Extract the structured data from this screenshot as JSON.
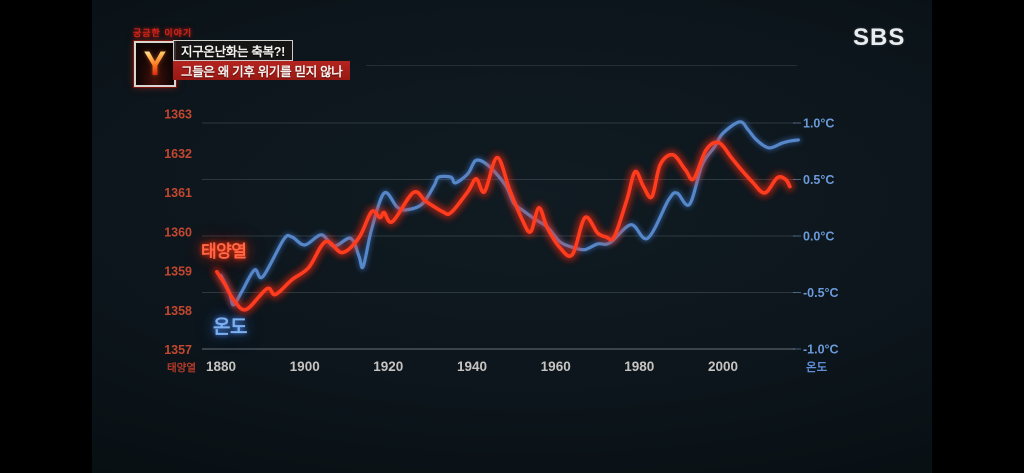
{
  "broadcast": {
    "program_tag": "궁금한 이야기",
    "logo_letter": "Y",
    "headline_primary": "지구온난화는 축복?!",
    "headline_secondary": "그들은 왜 기후 위기를 믿지 않나",
    "channel_logo": "SBS"
  },
  "chart_data": {
    "type": "line",
    "title": "",
    "grid": "horizontal only, dark background",
    "legend_position": "labels next to curves at left side",
    "x_axis": {
      "tick_labels": [
        "1880",
        "1900",
        "1920",
        "1940",
        "1960",
        "1980",
        "2000"
      ],
      "range": [
        1875,
        2018
      ],
      "label_color": "#d6d3cf"
    },
    "left_axis": {
      "title": "태양열",
      "tick_labels": [
        "1363",
        "1632",
        "1361",
        "1360",
        "1359",
        "1358",
        "1357"
      ],
      "note": "tick label 1632 is a typo for 1362 in the original broadcast graphic",
      "range": [
        1357,
        1363
      ],
      "label_color": "#cd4a30"
    },
    "right_axis": {
      "title": "온도",
      "tick_labels": [
        "1.0°C",
        "0.5°C",
        "0.0°C",
        "-0.5°C",
        "-1.0°C"
      ],
      "range": [
        -1.0,
        1.0
      ],
      "label_color": "#6a9ad9"
    },
    "series": [
      {
        "name": "태양열",
        "axis": "left",
        "color": "#ff3d1e",
        "glow": "#ff2808",
        "points": [
          [
            1879,
            1358.98
          ],
          [
            1881,
            1358.65
          ],
          [
            1883,
            1358.27
          ],
          [
            1886,
            1358.02
          ],
          [
            1891,
            1358.55
          ],
          [
            1893,
            1358.4
          ],
          [
            1897,
            1358.78
          ],
          [
            1901,
            1359.09
          ],
          [
            1905,
            1359.75
          ],
          [
            1909,
            1359.47
          ],
          [
            1913,
            1359.85
          ],
          [
            1916,
            1360.51
          ],
          [
            1918,
            1360.36
          ],
          [
            1919,
            1360.49
          ],
          [
            1921,
            1360.26
          ],
          [
            1926,
            1361.0
          ],
          [
            1929,
            1360.77
          ],
          [
            1933,
            1360.51
          ],
          [
            1935,
            1360.49
          ],
          [
            1939,
            1361.02
          ],
          [
            1941,
            1361.35
          ],
          [
            1943,
            1361.02
          ],
          [
            1946,
            1361.89
          ],
          [
            1949,
            1361.07
          ],
          [
            1952,
            1360.31
          ],
          [
            1954,
            1360.0
          ],
          [
            1956,
            1360.61
          ],
          [
            1958,
            1360.1
          ],
          [
            1961,
            1359.6
          ],
          [
            1964,
            1359.42
          ],
          [
            1967,
            1360.36
          ],
          [
            1970,
            1359.97
          ],
          [
            1972,
            1359.87
          ],
          [
            1974,
            1359.87
          ],
          [
            1977,
            1360.81
          ],
          [
            1979,
            1361.53
          ],
          [
            1981,
            1361.15
          ],
          [
            1983,
            1360.89
          ],
          [
            1985,
            1361.71
          ],
          [
            1988,
            1361.96
          ],
          [
            1991,
            1361.58
          ],
          [
            1993,
            1361.35
          ],
          [
            1996,
            1362.09
          ],
          [
            1999,
            1362.27
          ],
          [
            2002,
            1361.89
          ],
          [
            2004,
            1361.63
          ],
          [
            2007,
            1361.27
          ],
          [
            2010,
            1360.99
          ],
          [
            2013,
            1361.38
          ],
          [
            2015,
            1361.33
          ],
          [
            2016,
            1361.15
          ]
        ]
      },
      {
        "name": "온도",
        "axis": "right",
        "color": "#5687c8",
        "glow": "#3a6ab5",
        "points": [
          [
            1880,
            -0.35
          ],
          [
            1882,
            -0.5
          ],
          [
            1883,
            -0.61
          ],
          [
            1885,
            -0.49
          ],
          [
            1888,
            -0.3
          ],
          [
            1890,
            -0.36
          ],
          [
            1895,
            -0.03
          ],
          [
            1897,
            -0.01
          ],
          [
            1900,
            -0.08
          ],
          [
            1904,
            0.01
          ],
          [
            1907,
            -0.09
          ],
          [
            1911,
            -0.02
          ],
          [
            1913,
            -0.18
          ],
          [
            1914,
            -0.27
          ],
          [
            1916,
            0.06
          ],
          [
            1919,
            0.38
          ],
          [
            1922,
            0.26
          ],
          [
            1924,
            0.23
          ],
          [
            1928,
            0.28
          ],
          [
            1931,
            0.45
          ],
          [
            1932,
            0.52
          ],
          [
            1935,
            0.52
          ],
          [
            1936,
            0.47
          ],
          [
            1939,
            0.55
          ],
          [
            1941,
            0.67
          ],
          [
            1944,
            0.62
          ],
          [
            1948,
            0.45
          ],
          [
            1950,
            0.29
          ],
          [
            1952,
            0.23
          ],
          [
            1955,
            0.15
          ],
          [
            1958,
            0.08
          ],
          [
            1961,
            -0.05
          ],
          [
            1964,
            -0.1
          ],
          [
            1967,
            -0.12
          ],
          [
            1970,
            -0.07
          ],
          [
            1973,
            -0.06
          ],
          [
            1978,
            0.1
          ],
          [
            1982,
            -0.02
          ],
          [
            1987,
            0.32
          ],
          [
            1989,
            0.38
          ],
          [
            1992,
            0.28
          ],
          [
            1995,
            0.63
          ],
          [
            1998,
            0.79
          ],
          [
            2000,
            0.91
          ],
          [
            2004,
            1.01
          ],
          [
            2006,
            0.94
          ],
          [
            2008,
            0.85
          ],
          [
            2011,
            0.78
          ],
          [
            2014,
            0.82
          ],
          [
            2016,
            0.84
          ],
          [
            2018,
            0.85
          ]
        ]
      }
    ],
    "curve_labels": [
      {
        "text": "태양열",
        "series": "태양열",
        "color": "#ff6847"
      },
      {
        "text": "온도",
        "series": "온도",
        "color": "#7db0ef"
      }
    ]
  }
}
